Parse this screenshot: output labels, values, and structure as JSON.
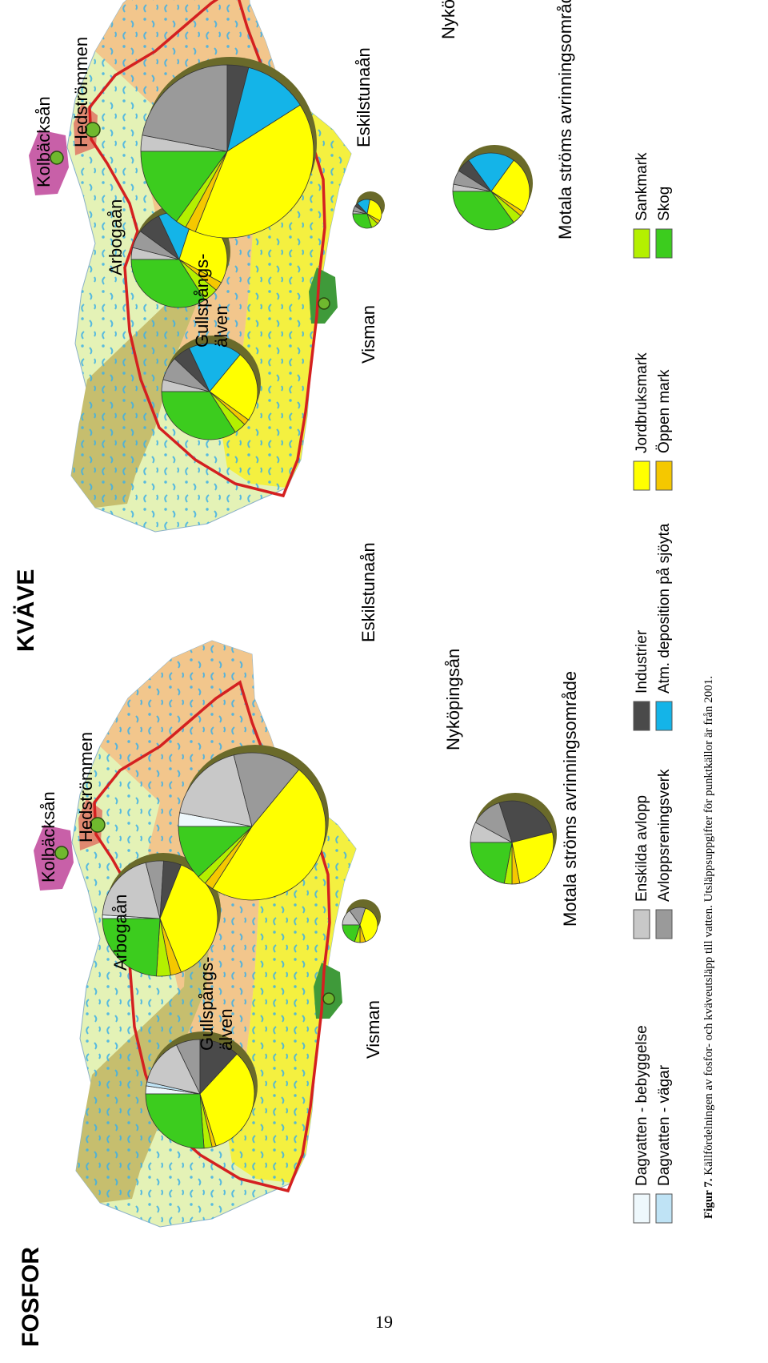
{
  "titles": {
    "fosfor": "FOSFOR",
    "kvave": "KVÄVE"
  },
  "map_labels": {
    "kolbacksan": "Kolbäcksån",
    "hedstrommen": "Hedströmmen",
    "arbogaan": "Arbogaån",
    "gullspang_1": "Gullspångs-",
    "gullspang_2": "älven",
    "eskilstunaan": "Eskilstunaån",
    "nykopingsan": "Nyköpingsån",
    "motala": "Motala ströms avrinningsområde",
    "visman": "Visman"
  },
  "legend": [
    {
      "label": "Dagvatten - bebyggelse",
      "color": "#eef8fc"
    },
    {
      "label": "Dagvatten - vägar",
      "color": "#bfe3f5"
    },
    {
      "label": "Enskilda avlopp",
      "color": "#c8c8c8"
    },
    {
      "label": "Avloppsreningsverk",
      "color": "#9a9a9a"
    },
    {
      "label": "Industrier",
      "color": "#4a4a4a"
    },
    {
      "label": "Atm. deposition på sjöyta",
      "color": "#14b4e8"
    },
    {
      "label": "Jordbruksmark",
      "color": "#ffff00"
    },
    {
      "label": "Öppen mark",
      "color": "#f5c800"
    },
    {
      "label": "Sankmark",
      "color": "#b4f000"
    },
    {
      "label": "Skog",
      "color": "#3ccc1e"
    }
  ],
  "caption": {
    "bold": "Figur 7.",
    "text": " Källfördelningen av fosfor- och kväveutsläpp till vatten. Utsläppsuppgifter för punktkällor är från 2001."
  },
  "page_number": "19",
  "colors": {
    "river_boundary": "#d42020",
    "forest_land": "#e4f2b6",
    "agri_land": "#f2c68c",
    "mixed_land": "#c6be6e",
    "yellow_land": "#f4f040",
    "water": "#3eb0e6"
  }
}
